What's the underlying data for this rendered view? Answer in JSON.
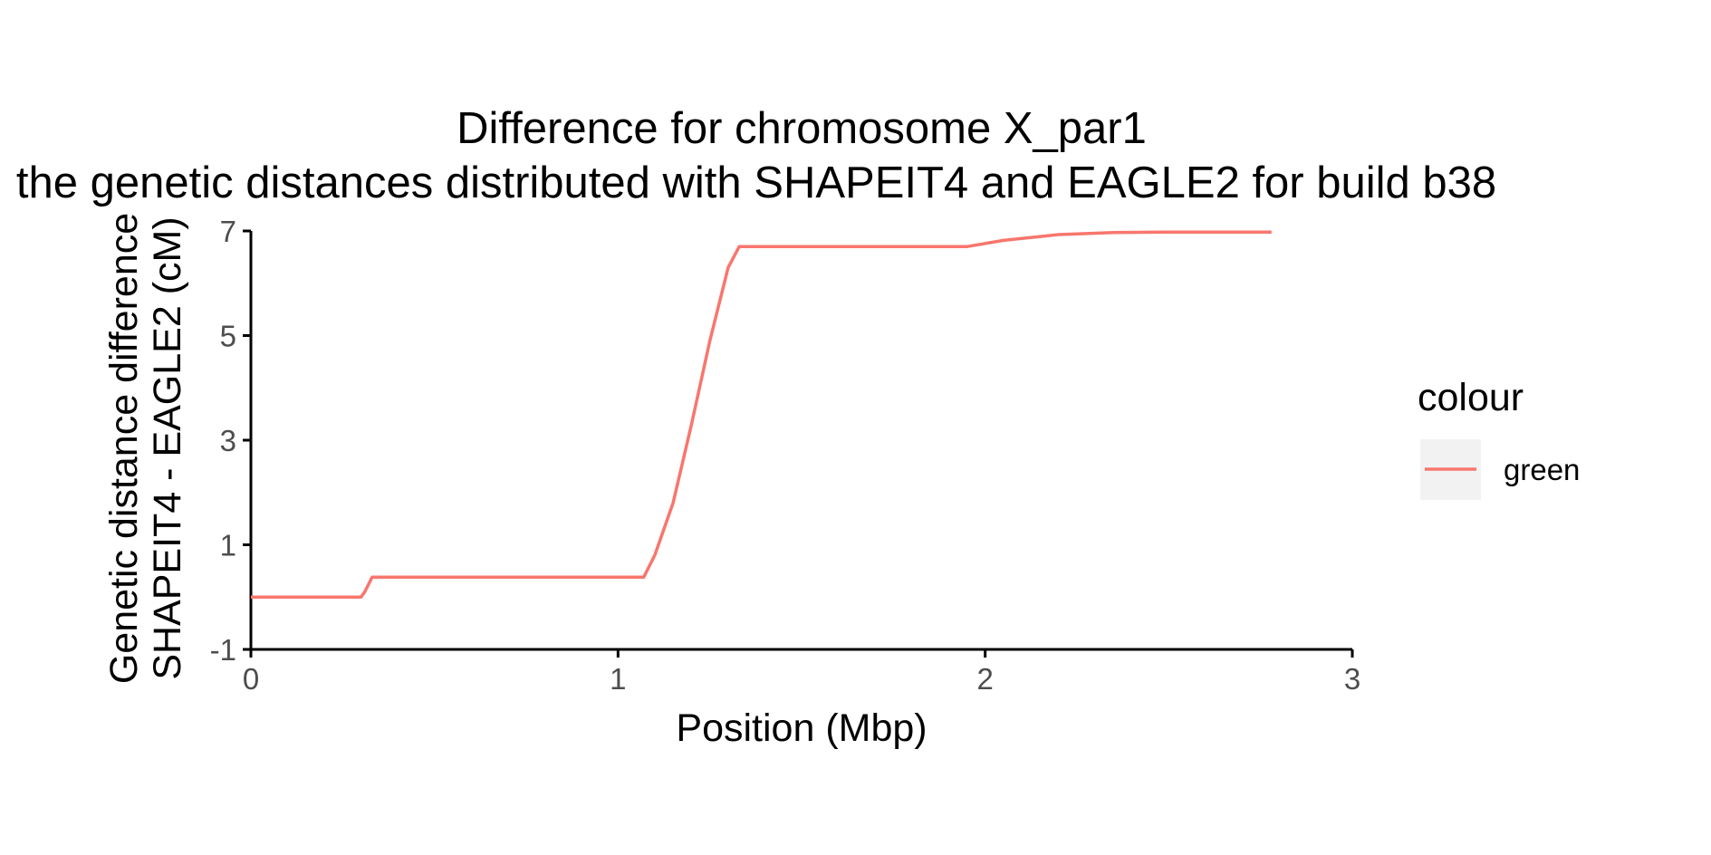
{
  "chart_data": {
    "type": "line",
    "title": "Difference for chromosome X_par1",
    "subtitle": "the genetic distances distributed with SHAPEIT4 and EAGLE2 for build b38",
    "xlabel": "Position (Mbp)",
    "ylabel": [
      "Genetic distance difference",
      "SHAPEIT4 - EAGLE2 (cM)"
    ],
    "xlim": [
      0,
      3
    ],
    "ylim": [
      -1,
      7
    ],
    "xticks": [
      0,
      1,
      2,
      3
    ],
    "yticks": [
      -1,
      1,
      3,
      5,
      7
    ],
    "grid": false,
    "legend": {
      "title": "colour",
      "position": "right",
      "entries": [
        {
          "label": "green",
          "color": "#F8766D"
        }
      ]
    },
    "series": [
      {
        "color": "#F8766D",
        "x": [
          0,
          0.1,
          0.2,
          0.3,
          0.31,
          0.33,
          0.5,
          0.7,
          0.9,
          1.0,
          1.07,
          1.1,
          1.15,
          1.2,
          1.25,
          1.3,
          1.33,
          1.5,
          1.7,
          1.9,
          1.95,
          2.05,
          2.2,
          2.35,
          2.5,
          2.65,
          2.78
        ],
        "y": [
          0,
          0,
          0,
          0,
          0.1,
          0.38,
          0.38,
          0.38,
          0.38,
          0.38,
          0.38,
          0.8,
          1.8,
          3.3,
          4.9,
          6.3,
          6.7,
          6.7,
          6.7,
          6.7,
          6.7,
          6.82,
          6.93,
          6.97,
          6.98,
          6.98,
          6.98
        ]
      }
    ]
  }
}
